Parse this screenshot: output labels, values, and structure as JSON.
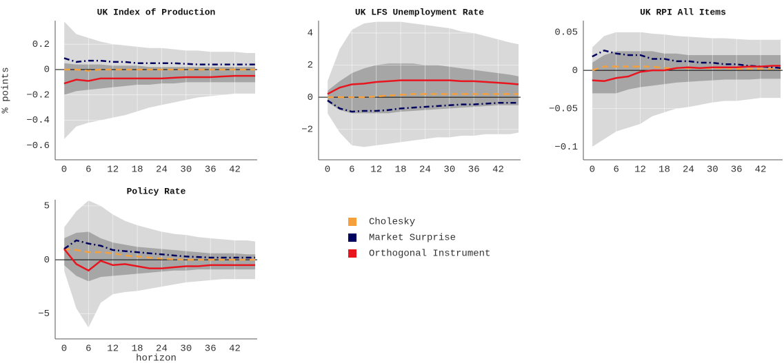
{
  "chart_data": [
    {
      "type": "line",
      "title": "UK Index of Production",
      "ylabel": "% points",
      "x": [
        0,
        3,
        6,
        9,
        12,
        15,
        18,
        21,
        24,
        27,
        30,
        33,
        36,
        39,
        42,
        45,
        47
      ],
      "xlim": [
        -2.2,
        47.5
      ],
      "xticks": [
        0,
        6,
        12,
        18,
        24,
        30,
        36,
        42
      ],
      "ylim": [
        -0.713,
        0.386
      ],
      "yticks": [
        0.2,
        0,
        {
          "value": -0.2,
          "label": "−0.2"
        },
        {
          "value": -0.4,
          "label": "−0.4"
        },
        {
          "value": -0.6,
          "label": "−0.6"
        }
      ],
      "grid": true,
      "zero_line": true,
      "bands": [
        {
          "color": "#d9d9d9",
          "upper": [
            0.38,
            0.28,
            0.25,
            0.22,
            0.2,
            0.19,
            0.18,
            0.17,
            0.17,
            0.16,
            0.15,
            0.15,
            0.14,
            0.14,
            0.14,
            0.13,
            0.13
          ],
          "lower": [
            -0.55,
            -0.45,
            -0.42,
            -0.4,
            -0.38,
            -0.36,
            -0.33,
            -0.3,
            -0.28,
            -0.26,
            -0.24,
            -0.22,
            -0.21,
            -0.2,
            -0.19,
            -0.19,
            -0.19
          ]
        },
        {
          "color": "#a6a6a6",
          "upper": [
            0.05,
            0.04,
            0.04,
            0.04,
            0.03,
            0.03,
            0.03,
            0.02,
            0.02,
            0.02,
            0.02,
            0.02,
            0.02,
            0.02,
            0.02,
            0.02,
            0.02
          ],
          "lower": [
            -0.2,
            -0.17,
            -0.16,
            -0.15,
            -0.14,
            -0.13,
            -0.12,
            -0.12,
            -0.11,
            -0.11,
            -0.1,
            -0.1,
            -0.1,
            -0.1,
            -0.1,
            -0.1,
            -0.1
          ]
        }
      ],
      "series": [
        {
          "name": "Cholesky",
          "color": "#f5a03c",
          "dash": "dashed",
          "values": [
            0,
            0,
            -0.01,
            0,
            0,
            0,
            0,
            0,
            0,
            0,
            0,
            0,
            0,
            0,
            0,
            0,
            0
          ]
        },
        {
          "name": "Market Surprise",
          "color": "#00005f",
          "dash": "dashdot",
          "values": [
            0.09,
            0.06,
            0.07,
            0.07,
            0.06,
            0.06,
            0.05,
            0.05,
            0.05,
            0.05,
            0.045,
            0.04,
            0.04,
            0.04,
            0.04,
            0.04,
            0.04
          ]
        },
        {
          "name": "Orthogonal Instrument",
          "color": "#e8141e",
          "dash": "solid",
          "values": [
            -0.11,
            -0.08,
            -0.09,
            -0.07,
            -0.07,
            -0.07,
            -0.07,
            -0.07,
            -0.07,
            -0.065,
            -0.06,
            -0.06,
            -0.06,
            -0.055,
            -0.05,
            -0.05,
            -0.05
          ]
        }
      ]
    },
    {
      "type": "line",
      "title": "UK LFS Unemployment Rate",
      "x": [
        0,
        3,
        6,
        9,
        12,
        15,
        18,
        21,
        24,
        27,
        30,
        33,
        36,
        39,
        42,
        45,
        47
      ],
      "xlim": [
        -2.2,
        47.5
      ],
      "xticks": [
        0,
        6,
        12,
        18,
        24,
        30,
        36,
        42
      ],
      "ylim": [
        -3.9,
        4.77
      ],
      "yticks": [
        4,
        2,
        0,
        {
          "value": -2,
          "label": "−2"
        }
      ],
      "grid": true,
      "zero_line": true,
      "bands": [
        {
          "color": "#d9d9d9",
          "upper": [
            1,
            3,
            4.2,
            4.6,
            4.7,
            4.7,
            4.7,
            4.6,
            4.5,
            4.4,
            4.3,
            4.1,
            4,
            3.8,
            3.6,
            3.4,
            3.3
          ],
          "lower": [
            -1,
            -2.2,
            -3,
            -3.1,
            -3,
            -2.9,
            -2.8,
            -2.7,
            -2.6,
            -2.5,
            -2.5,
            -2.4,
            -2.4,
            -2.3,
            -2.3,
            -2.3,
            -2.2
          ]
        },
        {
          "color": "#a6a6a6",
          "upper": [
            0.4,
            1,
            1.5,
            1.8,
            2,
            2.1,
            2.1,
            2.1,
            2,
            2,
            1.9,
            1.8,
            1.7,
            1.6,
            1.5,
            1.4,
            1.3
          ],
          "lower": [
            -0.3,
            -0.8,
            -1,
            -1,
            -1,
            -1,
            -0.9,
            -0.85,
            -0.8,
            -0.75,
            -0.7,
            -0.65,
            -0.6,
            -0.55,
            -0.5,
            -0.5,
            -0.5
          ]
        }
      ],
      "series": [
        {
          "name": "Cholesky",
          "color": "#f5a03c",
          "dash": "dashed",
          "values": [
            0,
            0,
            0,
            0,
            0.05,
            0.1,
            0.15,
            0.2,
            0.2,
            0.2,
            0.2,
            0.2,
            0.2,
            0.2,
            0.2,
            0.2,
            0.2
          ]
        },
        {
          "name": "Market Surprise",
          "color": "#00005f",
          "dash": "dashdot",
          "values": [
            -0.2,
            -0.7,
            -0.9,
            -0.85,
            -0.85,
            -0.8,
            -0.7,
            -0.65,
            -0.6,
            -0.55,
            -0.5,
            -0.45,
            -0.45,
            -0.4,
            -0.35,
            -0.35,
            -0.35
          ]
        },
        {
          "name": "Orthogonal Instrument",
          "color": "#e8141e",
          "dash": "solid",
          "values": [
            0.2,
            0.6,
            0.8,
            0.85,
            0.95,
            1,
            1.05,
            1.05,
            1.05,
            1.05,
            1.05,
            1,
            1,
            0.95,
            0.9,
            0.85,
            0.8
          ]
        }
      ]
    },
    {
      "type": "line",
      "title": "UK RPI All Items",
      "x": [
        0,
        3,
        6,
        9,
        12,
        15,
        18,
        21,
        24,
        27,
        30,
        33,
        36,
        39,
        42,
        45,
        47
      ],
      "xlim": [
        -2.2,
        47.5
      ],
      "xticks": [
        0,
        6,
        12,
        18,
        24,
        30,
        36,
        42
      ],
      "ylim": [
        -0.117,
        0.065
      ],
      "yticks": [
        0.05,
        0,
        {
          "value": -0.05,
          "label": "−0.05"
        },
        {
          "value": -0.1,
          "label": "−0.1"
        }
      ],
      "grid": true,
      "zero_line": true,
      "bands": [
        {
          "color": "#d9d9d9",
          "upper": [
            0.03,
            0.045,
            0.05,
            0.05,
            0.05,
            0.048,
            0.047,
            0.045,
            0.044,
            0.043,
            0.042,
            0.042,
            0.041,
            0.04,
            0.04,
            0.04,
            0.04
          ],
          "lower": [
            -0.1,
            -0.09,
            -0.08,
            -0.075,
            -0.07,
            -0.06,
            -0.055,
            -0.05,
            -0.048,
            -0.045,
            -0.042,
            -0.04,
            -0.04,
            -0.038,
            -0.036,
            -0.036,
            -0.036
          ]
        },
        {
          "color": "#a6a6a6",
          "upper": [
            0.01,
            0.02,
            0.025,
            0.025,
            0.025,
            0.025,
            0.022,
            0.022,
            0.02,
            0.02,
            0.02,
            0.02,
            0.02,
            0.02,
            0.02,
            0.02,
            0.02
          ],
          "lower": [
            -0.03,
            -0.03,
            -0.03,
            -0.025,
            -0.022,
            -0.02,
            -0.018,
            -0.016,
            -0.015,
            -0.014,
            -0.013,
            -0.012,
            -0.012,
            -0.012,
            -0.011,
            -0.011,
            -0.011
          ]
        }
      ],
      "series": [
        {
          "name": "Cholesky",
          "color": "#f5a03c",
          "dash": "dashed",
          "values": [
            0,
            0.005,
            0.005,
            0.005,
            0.005,
            0.005,
            0.003,
            0.003,
            0.003,
            0.003,
            0.003,
            0.003,
            0.002,
            0.002,
            0.002,
            0.002,
            0.002
          ]
        },
        {
          "name": "Market Surprise",
          "color": "#00005f",
          "dash": "dashdot",
          "values": [
            0.018,
            0.026,
            0.022,
            0.02,
            0.02,
            0.015,
            0.015,
            0.012,
            0.012,
            0.01,
            0.01,
            0.008,
            0.008,
            0.006,
            0.005,
            0.004,
            0.003
          ]
        },
        {
          "name": "Orthogonal Instrument",
          "color": "#e8141e",
          "dash": "solid",
          "values": [
            -0.013,
            -0.014,
            -0.01,
            -0.008,
            -0.002,
            0,
            0,
            0.003,
            0.004,
            0.003,
            0.004,
            0.004,
            0.004,
            0.005,
            0.005,
            0.006,
            0.006
          ]
        }
      ]
    },
    {
      "type": "line",
      "title": "Policy Rate",
      "xlabel": "horizon",
      "legend": "right",
      "x": [
        0,
        3,
        6,
        9,
        12,
        15,
        18,
        21,
        24,
        27,
        30,
        33,
        36,
        39,
        42,
        45,
        47
      ],
      "xlim": [
        -2.2,
        47.5
      ],
      "xticks": [
        0,
        6,
        12,
        18,
        24,
        30,
        36,
        42
      ],
      "ylim": [
        -7.35,
        5.57
      ],
      "yticks": [
        5,
        0,
        {
          "value": -5,
          "label": "−5"
        }
      ],
      "grid": true,
      "zero_line": true,
      "bands": [
        {
          "color": "#d9d9d9",
          "upper": [
            3,
            4.5,
            5.5,
            5,
            4.2,
            3.6,
            3.2,
            2.9,
            2.6,
            2.4,
            2.3,
            2.1,
            2,
            1.9,
            1.8,
            1.8,
            1.7
          ],
          "lower": [
            -1,
            -4.5,
            -6.3,
            -4,
            -3.2,
            -3,
            -2.9,
            -2.7,
            -2.5,
            -2.3,
            -2.1,
            -2,
            -1.9,
            -1.8,
            -1.8,
            -1.8,
            -1.8
          ]
        },
        {
          "color": "#a6a6a6",
          "upper": [
            2,
            2.5,
            2.6,
            2,
            1.6,
            1.4,
            1.2,
            1.1,
            1,
            0.9,
            0.8,
            0.7,
            0.6,
            0.6,
            0.6,
            0.5,
            0.5
          ],
          "lower": [
            -0.5,
            -1.5,
            -2,
            -1.6,
            -1.5,
            -1.4,
            -1.3,
            -1.2,
            -1.1,
            -1,
            -1,
            -0.9,
            -0.9,
            -0.9,
            -0.9,
            -0.9,
            -0.9
          ]
        }
      ],
      "series": [
        {
          "name": "Cholesky",
          "color": "#f5a03c",
          "dash": "dashed",
          "values": [
            1,
            0.9,
            0.7,
            0.7,
            0.6,
            0.4,
            0.3,
            0.2,
            0.1,
            0.05,
            0,
            0,
            0,
            0,
            0,
            0,
            0
          ]
        },
        {
          "name": "Market Surprise",
          "color": "#00005f",
          "dash": "dashdot",
          "values": [
            1,
            1.8,
            1.5,
            1.3,
            0.9,
            0.8,
            0.7,
            0.6,
            0.5,
            0.4,
            0.3,
            0.25,
            0.2,
            0.2,
            0.2,
            0.2,
            0.2
          ]
        },
        {
          "name": "Orthogonal Instrument",
          "color": "#e8141e",
          "dash": "solid",
          "values": [
            1,
            -0.4,
            -1,
            -0.1,
            -0.5,
            -0.4,
            -0.6,
            -0.8,
            -0.8,
            -0.7,
            -0.6,
            -0.6,
            -0.5,
            -0.5,
            -0.5,
            -0.5,
            -0.5
          ]
        }
      ]
    }
  ]
}
